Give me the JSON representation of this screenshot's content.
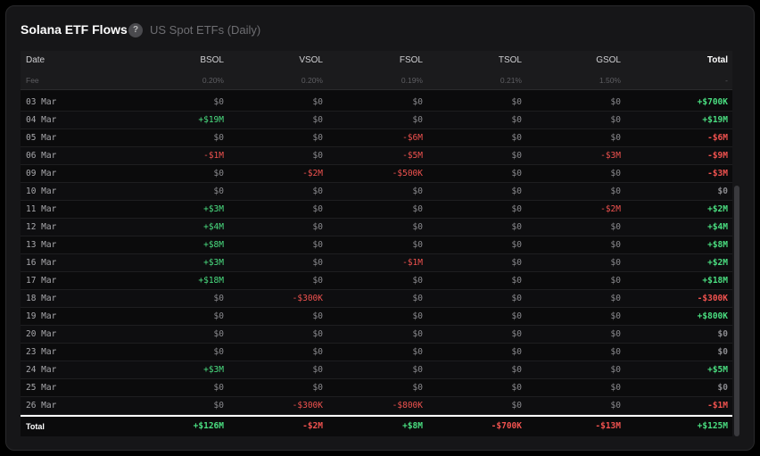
{
  "header": {
    "title": "Solana ETF Flows",
    "help": "?",
    "subtitle": "US Spot ETFs (Daily)"
  },
  "table": {
    "columns": [
      "Date",
      "BSOL",
      "VSOL",
      "FSOL",
      "TSOL",
      "GSOL",
      "Total"
    ],
    "fee": [
      "Fee",
      "0.20%",
      "0.20%",
      "0.19%",
      "0.21%",
      "1.50%",
      "-"
    ],
    "rows": [
      [
        "03 Mar",
        "$0",
        "$0",
        "$0",
        "$0",
        "$0",
        "+$700K"
      ],
      [
        "04 Mar",
        "+$19M",
        "$0",
        "$0",
        "$0",
        "$0",
        "+$19M"
      ],
      [
        "05 Mar",
        "$0",
        "$0",
        "-$6M",
        "$0",
        "$0",
        "-$6M"
      ],
      [
        "06 Mar",
        "-$1M",
        "$0",
        "-$5M",
        "$0",
        "-$3M",
        "-$9M"
      ],
      [
        "09 Mar",
        "$0",
        "-$2M",
        "-$500K",
        "$0",
        "$0",
        "-$3M"
      ],
      [
        "10 Mar",
        "$0",
        "$0",
        "$0",
        "$0",
        "$0",
        "$0"
      ],
      [
        "11 Mar",
        "+$3M",
        "$0",
        "$0",
        "$0",
        "-$2M",
        "+$2M"
      ],
      [
        "12 Mar",
        "+$4M",
        "$0",
        "$0",
        "$0",
        "$0",
        "+$4M"
      ],
      [
        "13 Mar",
        "+$8M",
        "$0",
        "$0",
        "$0",
        "$0",
        "+$8M"
      ],
      [
        "16 Mar",
        "+$3M",
        "$0",
        "-$1M",
        "$0",
        "$0",
        "+$2M"
      ],
      [
        "17 Mar",
        "+$18M",
        "$0",
        "$0",
        "$0",
        "$0",
        "+$18M"
      ],
      [
        "18 Mar",
        "$0",
        "-$300K",
        "$0",
        "$0",
        "$0",
        "-$300K"
      ],
      [
        "19 Mar",
        "$0",
        "$0",
        "$0",
        "$0",
        "$0",
        "+$800K"
      ],
      [
        "20 Mar",
        "$0",
        "$0",
        "$0",
        "$0",
        "$0",
        "$0"
      ],
      [
        "23 Mar",
        "$0",
        "$0",
        "$0",
        "$0",
        "$0",
        "$0"
      ],
      [
        "24 Mar",
        "+$3M",
        "$0",
        "$0",
        "$0",
        "$0",
        "+$5M"
      ],
      [
        "25 Mar",
        "$0",
        "$0",
        "$0",
        "$0",
        "$0",
        "$0"
      ],
      [
        "26 Mar",
        "$0",
        "-$300K",
        "-$800K",
        "$0",
        "$0",
        "-$1M"
      ]
    ],
    "total": [
      "Total",
      "+$126M",
      "-$2M",
      "+$8M",
      "-$700K",
      "-$13M",
      "+$125M"
    ]
  }
}
